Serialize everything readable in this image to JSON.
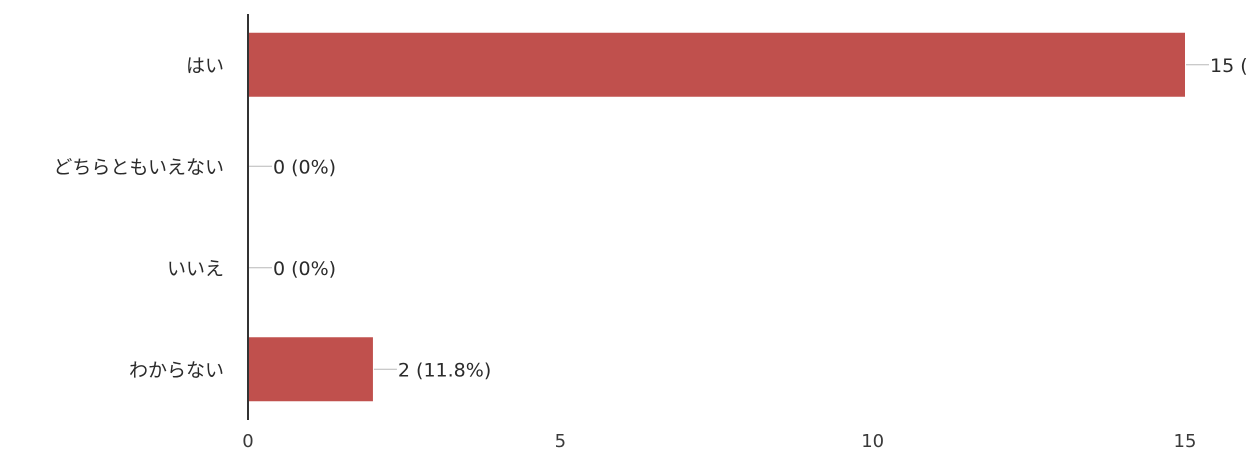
{
  "chart_data": {
    "type": "bar",
    "orientation": "horizontal",
    "categories": [
      "はい",
      "どちらともいえない",
      "いいえ",
      "わからない"
    ],
    "values": [
      15,
      0,
      0,
      2
    ],
    "data_labels": [
      "15 (",
      "0 (0%)",
      "0 (0%)",
      "2 (11.8%)"
    ],
    "xlim": [
      0,
      15
    ],
    "xticks": [
      "0",
      "5",
      "10",
      "15"
    ],
    "title": "",
    "xlabel": "",
    "ylabel": "",
    "grid": false,
    "bar_color": "#c0504d"
  }
}
